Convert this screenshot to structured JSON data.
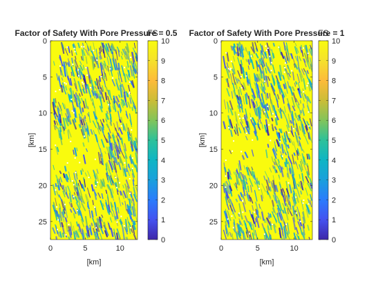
{
  "chart_data": [
    {
      "type": "heatmap",
      "title": "Factor of Safety With Pore Pressure = 0.5",
      "xlabel": "[km]",
      "ylabel": "[km]",
      "xlim": [
        0,
        12.5
      ],
      "ylim": [
        27.5,
        0
      ],
      "xticks": [
        0,
        5,
        10
      ],
      "yticks": [
        0,
        5,
        10,
        15,
        20,
        25
      ],
      "colorbar": {
        "label": "FS",
        "range": [
          0,
          10
        ],
        "ticks": [
          0,
          1,
          2,
          3,
          4,
          5,
          6,
          7,
          8,
          9,
          10
        ]
      },
      "colormap": [
        "#3e26a8",
        "#4452f0",
        "#2a7cfc",
        "#1aa0dc",
        "#0fb5c4",
        "#2ec19a",
        "#82c45a",
        "#cbbd37",
        "#fdbb3a",
        "#f5e12c",
        "#f9fb0e"
      ]
    },
    {
      "type": "heatmap",
      "title": "Factor of Safety With Pore Pressure = 1",
      "xlabel": "[km]",
      "ylabel": "[km]",
      "xlim": [
        0,
        12.5
      ],
      "ylim": [
        27.5,
        0
      ],
      "xticks": [
        0,
        5,
        10
      ],
      "yticks": [
        0,
        5,
        10,
        15,
        20,
        25
      ],
      "colorbar": {
        "label": "FS",
        "range": [
          0,
          10
        ],
        "ticks": [
          0,
          1,
          2,
          3,
          4,
          5,
          6,
          7,
          8,
          9,
          10
        ]
      },
      "colormap": [
        "#3e26a8",
        "#4452f0",
        "#2a7cfc",
        "#1aa0dc",
        "#0fb5c4",
        "#2ec19a",
        "#82c45a",
        "#cbbd37",
        "#fdbb3a",
        "#f5e12c",
        "#f9fb0e"
      ]
    }
  ]
}
